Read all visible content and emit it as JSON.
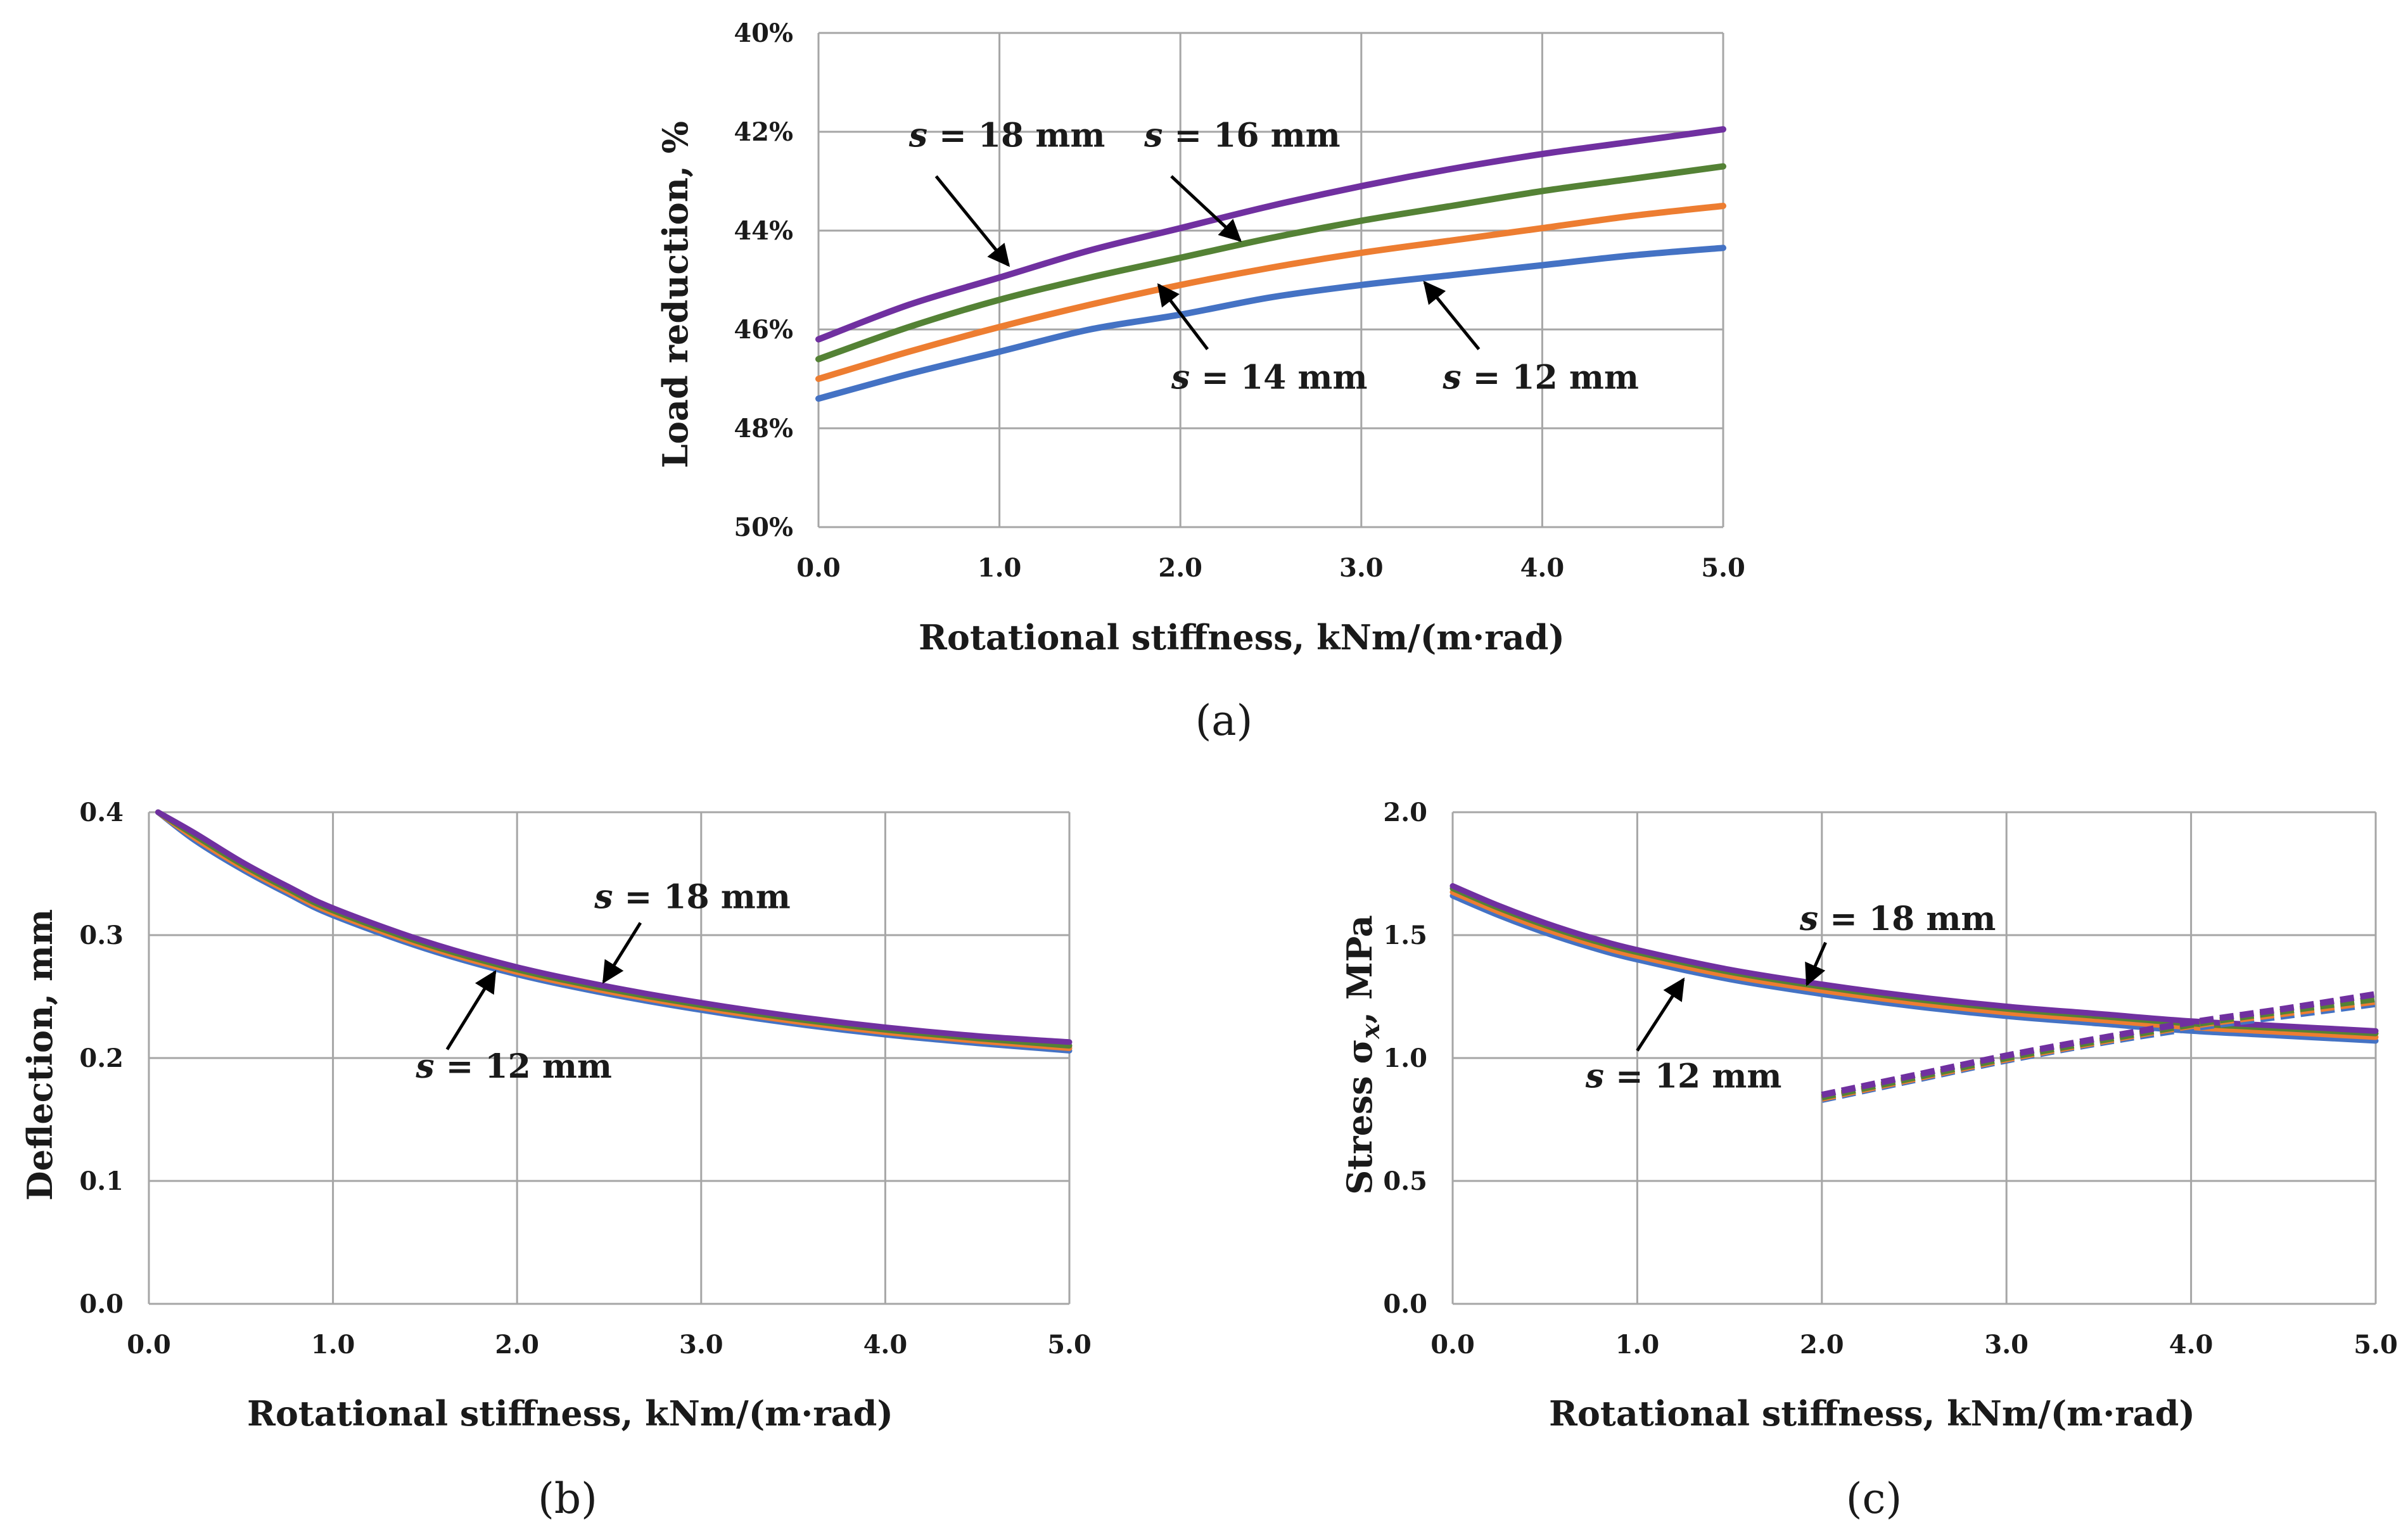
{
  "chart_data": [
    {
      "id": "a",
      "type": "line",
      "panel_label": "(a)",
      "xlabel": "Rotational stiffness, kNm/(m·rad)",
      "ylabel": "Load reduction, %",
      "xlim": [
        0,
        5
      ],
      "ylim": [
        40,
        50
      ],
      "y_inverted": true,
      "grid": true,
      "x_ticks": [
        0,
        1,
        2,
        3,
        4,
        5
      ],
      "x_tick_labels": [
        "0.0",
        "1.0",
        "2.0",
        "3.0",
        "4.0",
        "5.0"
      ],
      "y_ticks": [
        40,
        42,
        44,
        46,
        48,
        50
      ],
      "y_tick_labels": [
        "40%",
        "42%",
        "44%",
        "46%",
        "48%",
        "50%"
      ],
      "series": [
        {
          "name": "s = 12 mm",
          "color": "#4472C4",
          "x": [
            0,
            0.5,
            1,
            1.5,
            2,
            2.5,
            3,
            3.5,
            4,
            4.5,
            5
          ],
          "values": [
            47.4,
            46.9,
            46.45,
            46.0,
            45.7,
            45.35,
            45.1,
            44.9,
            44.7,
            44.5,
            44.35
          ]
        },
        {
          "name": "s = 14 mm",
          "color": "#ED7D31",
          "x": [
            0,
            0.5,
            1,
            1.5,
            2,
            2.5,
            3,
            3.5,
            4,
            4.5,
            5
          ],
          "values": [
            47.0,
            46.45,
            45.95,
            45.5,
            45.1,
            44.75,
            44.45,
            44.2,
            43.95,
            43.7,
            43.5
          ]
        },
        {
          "name": "s = 16 mm",
          "color": "#548235",
          "x": [
            0,
            0.5,
            1,
            1.5,
            2,
            2.5,
            3,
            3.5,
            4,
            4.5,
            5
          ],
          "values": [
            46.6,
            45.95,
            45.4,
            44.95,
            44.55,
            44.15,
            43.8,
            43.5,
            43.2,
            42.95,
            42.7
          ]
        },
        {
          "name": "s = 18 mm",
          "color": "#7030A0",
          "x": [
            0,
            0.5,
            1,
            1.5,
            2,
            2.5,
            3,
            3.5,
            4,
            4.5,
            5
          ],
          "values": [
            46.2,
            45.5,
            44.95,
            44.4,
            43.95,
            43.5,
            43.1,
            42.75,
            42.45,
            42.2,
            41.95
          ]
        }
      ],
      "annotations": [
        {
          "var": "s",
          "rest": " = 18 mm",
          "text_at": [
            0.5,
            42.3
          ],
          "arrow_from": [
            0.65,
            42.9
          ],
          "arrow_to": [
            1.05,
            44.7
          ]
        },
        {
          "var": "s",
          "rest": " = 16 mm",
          "text_at": [
            1.8,
            42.3
          ],
          "arrow_from": [
            1.95,
            42.9
          ],
          "arrow_to": [
            2.33,
            44.2
          ]
        },
        {
          "var": "s",
          "rest": " = 14 mm",
          "text_at": [
            1.95,
            47.2
          ],
          "arrow_from": [
            2.15,
            46.4
          ],
          "arrow_to": [
            1.88,
            45.1
          ]
        },
        {
          "var": "s",
          "rest": " = 12 mm",
          "text_at": [
            3.45,
            47.2
          ],
          "arrow_from": [
            3.65,
            46.4
          ],
          "arrow_to": [
            3.35,
            45.05
          ]
        }
      ]
    },
    {
      "id": "b",
      "type": "line",
      "panel_label": "(b)",
      "xlabel": "Rotational stiffness, kNm/(m·rad)",
      "ylabel": "Deflection, mm",
      "xlim": [
        0,
        5
      ],
      "ylim": [
        0,
        0.4
      ],
      "grid": true,
      "x_ticks": [
        0,
        1,
        2,
        3,
        4,
        5
      ],
      "x_tick_labels": [
        "0.0",
        "1.0",
        "2.0",
        "3.0",
        "4.0",
        "5.0"
      ],
      "y_ticks": [
        0,
        0.1,
        0.2,
        0.3,
        0.4
      ],
      "y_tick_labels": [
        "0.0",
        "0.1",
        "0.2",
        "0.3",
        "0.4"
      ],
      "series": [
        {
          "name": "s = 12 mm",
          "color": "#4472C4",
          "x": [
            0.05,
            0.25,
            0.5,
            0.75,
            1,
            1.5,
            2,
            2.5,
            3,
            3.5,
            4,
            4.5,
            5
          ],
          "values": [
            0.4,
            0.377,
            0.354,
            0.334,
            0.316,
            0.289,
            0.268,
            0.252,
            0.239,
            0.228,
            0.219,
            0.212,
            0.206
          ]
        },
        {
          "name": "s = 14 mm",
          "color": "#ED7D31",
          "x": [
            0.05,
            0.25,
            0.5,
            0.75,
            1,
            1.5,
            2,
            2.5,
            3,
            3.5,
            4,
            4.5,
            5
          ],
          "values": [
            0.4,
            0.379,
            0.356,
            0.336,
            0.318,
            0.291,
            0.27,
            0.254,
            0.241,
            0.23,
            0.221,
            0.214,
            0.208
          ]
        },
        {
          "name": "s = 16 mm",
          "color": "#548235",
          "x": [
            0.05,
            0.25,
            0.5,
            0.75,
            1,
            1.5,
            2,
            2.5,
            3,
            3.5,
            4,
            4.5,
            5
          ],
          "values": [
            0.4,
            0.381,
            0.358,
            0.338,
            0.32,
            0.293,
            0.272,
            0.256,
            0.243,
            0.232,
            0.223,
            0.216,
            0.21
          ]
        },
        {
          "name": "s = 18 mm",
          "color": "#7030A0",
          "x": [
            0.05,
            0.25,
            0.5,
            0.75,
            1,
            1.5,
            2,
            2.5,
            3,
            3.5,
            4,
            4.5,
            5
          ],
          "values": [
            0.4,
            0.383,
            0.36,
            0.34,
            0.322,
            0.295,
            0.274,
            0.258,
            0.245,
            0.234,
            0.225,
            0.218,
            0.213
          ]
        }
      ],
      "annotations": [
        {
          "var": "s",
          "rest": " = 18 mm",
          "text_at": [
            2.42,
            0.322
          ],
          "arrow_from": [
            2.67,
            0.31
          ],
          "arrow_to": [
            2.47,
            0.262
          ]
        },
        {
          "var": "s",
          "rest": " = 12 mm",
          "text_at": [
            1.45,
            0.184
          ],
          "arrow_from": [
            1.62,
            0.207
          ],
          "arrow_to": [
            1.88,
            0.27
          ]
        }
      ]
    },
    {
      "id": "c",
      "type": "line",
      "panel_label": "(c)",
      "xlabel": "Rotational stiffness, kNm/(m·rad)",
      "ylabel_main": "Stress σ",
      "ylabel_sub": "x",
      "ylabel_tail": ", MPa",
      "xlim": [
        0,
        5
      ],
      "ylim": [
        0,
        2
      ],
      "grid": true,
      "x_ticks": [
        0,
        1,
        2,
        3,
        4,
        5
      ],
      "x_tick_labels": [
        "0.0",
        "1.0",
        "2.0",
        "3.0",
        "4.0",
        "5.0"
      ],
      "y_ticks": [
        0,
        0.5,
        1,
        1.5,
        2
      ],
      "y_tick_labels": [
        "0.0",
        "0.5",
        "1.0",
        "1.5",
        "2.0"
      ],
      "series": [
        {
          "name": "s = 12 mm",
          "color": "#4472C4",
          "x": [
            0,
            0.25,
            0.5,
            0.75,
            1,
            1.5,
            2,
            2.5,
            3,
            3.5,
            4,
            4.5,
            5
          ],
          "values": [
            1.66,
            1.58,
            1.51,
            1.45,
            1.4,
            1.32,
            1.26,
            1.21,
            1.17,
            1.14,
            1.11,
            1.09,
            1.07
          ]
        },
        {
          "name": "s = 14 mm",
          "color": "#ED7D31",
          "x": [
            0,
            0.25,
            0.5,
            0.75,
            1,
            1.5,
            2,
            2.5,
            3,
            3.5,
            4,
            4.5,
            5
          ],
          "values": [
            1.675,
            1.595,
            1.525,
            1.465,
            1.415,
            1.335,
            1.275,
            1.225,
            1.185,
            1.155,
            1.125,
            1.105,
            1.085
          ]
        },
        {
          "name": "s = 16 mm",
          "color": "#548235",
          "x": [
            0,
            0.25,
            0.5,
            0.75,
            1,
            1.5,
            2,
            2.5,
            3,
            3.5,
            4,
            4.5,
            5
          ],
          "values": [
            1.69,
            1.61,
            1.54,
            1.48,
            1.43,
            1.35,
            1.29,
            1.24,
            1.2,
            1.17,
            1.14,
            1.12,
            1.1
          ]
        },
        {
          "name": "s = 18 mm",
          "color": "#7030A0",
          "x": [
            0,
            0.25,
            0.5,
            0.75,
            1,
            1.5,
            2,
            2.5,
            3,
            3.5,
            4,
            4.5,
            5
          ],
          "values": [
            1.7,
            1.62,
            1.55,
            1.49,
            1.44,
            1.36,
            1.3,
            1.25,
            1.21,
            1.18,
            1.15,
            1.13,
            1.11
          ]
        },
        {
          "name": "s = 12 mm (dashed)",
          "color": "#4472C4",
          "dashed": true,
          "x": [
            2,
            2.5,
            3,
            3.5,
            4,
            4.5,
            5
          ],
          "values": [
            0.83,
            0.91,
            0.99,
            1.06,
            1.12,
            1.17,
            1.22
          ]
        },
        {
          "name": "s = 14 mm (dashed)",
          "color": "#ED7D31",
          "dashed": true,
          "x": [
            2,
            2.5,
            3,
            3.5,
            4,
            4.5,
            5
          ],
          "values": [
            0.835,
            0.915,
            0.995,
            1.065,
            1.13,
            1.18,
            1.23
          ]
        },
        {
          "name": "s = 16 mm (dashed)",
          "color": "#548235",
          "dashed": true,
          "x": [
            2,
            2.5,
            3,
            3.5,
            4,
            4.5,
            5
          ],
          "values": [
            0.84,
            0.92,
            1.0,
            1.07,
            1.135,
            1.19,
            1.24
          ]
        },
        {
          "name": "s = 18 mm (dashed)",
          "color": "#7030A0",
          "dashed": true,
          "x": [
            2,
            2.5,
            3,
            3.5,
            4,
            4.5,
            5
          ],
          "values": [
            0.85,
            0.93,
            1.01,
            1.08,
            1.145,
            1.2,
            1.26
          ]
        }
      ],
      "annotations": [
        {
          "var": "s",
          "rest": " = 18 mm",
          "text_at": [
            1.88,
            1.52
          ],
          "arrow_from": [
            2.02,
            1.47
          ],
          "arrow_to": [
            1.92,
            1.3
          ]
        },
        {
          "var": "s",
          "rest": " = 12 mm",
          "text_at": [
            0.72,
            0.88
          ],
          "arrow_from": [
            1.0,
            1.03
          ],
          "arrow_to": [
            1.25,
            1.32
          ]
        }
      ]
    }
  ]
}
